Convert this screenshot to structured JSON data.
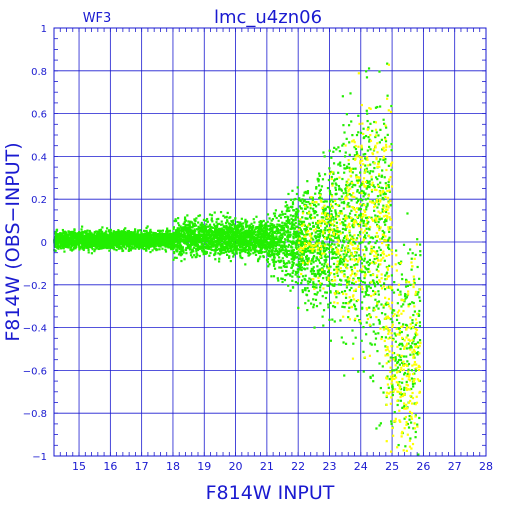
{
  "chart_data": {
    "type": "scatter",
    "title": "lmc_u4zn06",
    "corner_label": "WF3",
    "xlabel": "F814W  INPUT",
    "ylabel": "F814W  (OBS−INPUT)",
    "xlim": [
      14.2,
      28
    ],
    "ylim": [
      -1,
      1
    ],
    "xticks": [
      15,
      16,
      17,
      18,
      19,
      20,
      21,
      22,
      23,
      24,
      25,
      26,
      27,
      28
    ],
    "xtick_labels": [
      "15",
      "16",
      "17",
      "18",
      "19",
      "20",
      "21",
      "22",
      "23",
      "24",
      "25",
      "26",
      "27",
      "28"
    ],
    "yticks": [
      -1,
      -0.8,
      -0.6,
      -0.4,
      -0.2,
      0,
      0.2,
      0.4,
      0.6,
      0.8,
      1
    ],
    "ytick_labels": [
      "−1",
      "−0.8",
      "−0.6",
      "−0.4",
      "−0.2",
      "0",
      "0.2",
      "0.4",
      "0.6",
      "0.8",
      "1"
    ],
    "grid": true,
    "colors": {
      "axis": "#1a1ad0",
      "recovered": "#22ee00",
      "flagged": "#ffff00"
    },
    "series": [
      {
        "color": "#22ee00",
        "distribution": [
          {
            "x": [
              14.2,
              18.0
            ],
            "y_center": 0.01,
            "y_halfwidth": 0.04,
            "density": 0.9
          },
          {
            "x": [
              18.0,
              21.0
            ],
            "y_center": 0.02,
            "y_halfwidth": 0.08,
            "density": 0.75
          },
          {
            "x": [
              21.0,
              23.0
            ],
            "y_center": 0.0,
            "y_halfwidth": [
              0.1,
              0.35
            ],
            "density": 0.7
          },
          {
            "x": [
              23.0,
              24.3
            ],
            "y_center": 0.05,
            "y_halfwidth": [
              0.35,
              0.6
            ],
            "density": 0.6
          },
          {
            "x": [
              24.3,
              25.0
            ],
            "y_center": 0.0,
            "y_halfwidth": [
              0.6,
              0.9
            ],
            "density": 0.5
          },
          {
            "x": [
              25.0,
              25.9
            ],
            "y_center": -0.5,
            "y_halfwidth": [
              0.4,
              0.5
            ],
            "density": 0.35
          }
        ],
        "values": [
          [
            14.5,
            0.01
          ],
          [
            15.0,
            0.02
          ],
          [
            15.5,
            0.0
          ],
          [
            16.0,
            0.02
          ],
          [
            16.5,
            0.01
          ],
          [
            17.0,
            0.02
          ],
          [
            17.5,
            0.0
          ],
          [
            18.0,
            0.02
          ],
          [
            18.5,
            0.01
          ],
          [
            19.0,
            0.02
          ],
          [
            19.5,
            0.01
          ],
          [
            20.0,
            0.02
          ],
          [
            20.5,
            0.03
          ],
          [
            21.0,
            0.02
          ],
          [
            21.5,
            0.0
          ],
          [
            22.0,
            0.04
          ],
          [
            22.5,
            -0.02
          ],
          [
            23.0,
            0.06
          ],
          [
            23.5,
            0.1
          ],
          [
            24.0,
            0.2
          ],
          [
            24.2,
            0.6
          ],
          [
            24.5,
            -0.3
          ],
          [
            25.0,
            -0.6
          ],
          [
            25.5,
            -0.85
          ]
        ]
      },
      {
        "color": "#ffff00",
        "distribution": [
          {
            "x": [
              22.0,
              23.5
            ],
            "y_center": 0.0,
            "y_halfwidth": [
              0.1,
              0.4
            ],
            "density": 0.15
          },
          {
            "x": [
              23.5,
              25.0
            ],
            "y_center": 0.1,
            "y_halfwidth": [
              0.4,
              0.6
            ],
            "density": 0.35
          },
          {
            "x": [
              24.8,
              25.9
            ],
            "y_center": -0.55,
            "y_halfwidth": 0.45,
            "density": 0.3
          }
        ],
        "values": [
          [
            23.0,
            0.05
          ],
          [
            23.5,
            0.2
          ],
          [
            24.0,
            0.35
          ],
          [
            24.3,
            0.5
          ],
          [
            24.5,
            0.1
          ],
          [
            24.8,
            -0.4
          ],
          [
            25.2,
            -0.7
          ],
          [
            25.5,
            -0.9
          ]
        ]
      }
    ]
  }
}
